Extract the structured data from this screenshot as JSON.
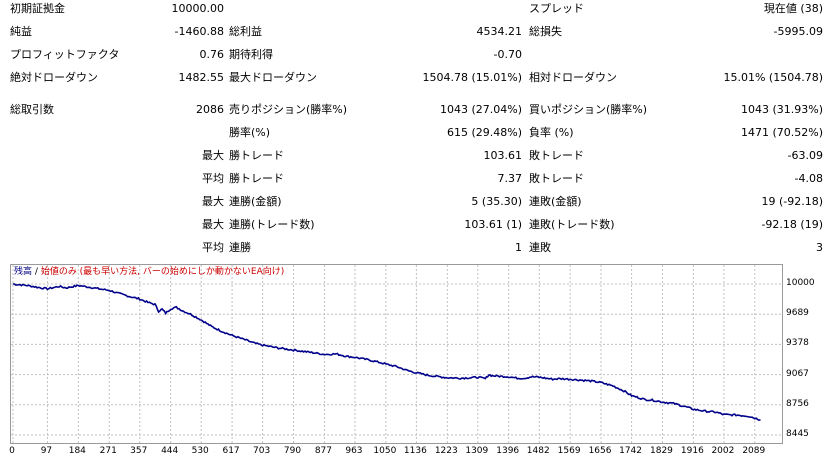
{
  "report": {
    "rows": [
      {
        "c1_label": "初期証拠金",
        "c1_value": "10000.00",
        "c2_label": "",
        "c2_value": "",
        "c3_label": "スプレッド",
        "c3_value": "現在値 (38)"
      },
      {
        "c1_label": "純益",
        "c1_value": "-1460.88",
        "c2_label": "総利益",
        "c2_value": "4534.21",
        "c3_label": "総損失",
        "c3_value": "-5995.09"
      },
      {
        "c1_label": "プロフィットファクタ",
        "c1_value": "0.76",
        "c2_label": "期待利得",
        "c2_value": "-0.70",
        "c3_label": "",
        "c3_value": ""
      },
      {
        "c1_label": "絶対ドローダウン",
        "c1_value": "1482.55",
        "c2_label": "最大ドローダウン",
        "c2_value": "1504.78 (15.01%)",
        "c3_label": "相対ドローダウン",
        "c3_value": "15.01% (1504.78)"
      },
      {
        "c1_label": "総取引数",
        "c1_value": "2086",
        "c2_label": "売りポジション(勝率%)",
        "c2_value": "1043 (27.04%)",
        "c3_label": "買いポジション(勝率%)",
        "c3_value": "1043 (31.93%)"
      },
      {
        "c1_label": "",
        "c1_value": "",
        "c2_label": "勝率(%)",
        "c2_value": "615 (29.48%)",
        "c3_label": "負率 (%)",
        "c3_value": "1471 (70.52%)"
      },
      {
        "prefix": "最大",
        "c2_label": "勝トレード",
        "c2_value": "103.61",
        "c3_label": "敗トレード",
        "c3_value": "-63.09"
      },
      {
        "prefix": "平均",
        "c2_label": "勝トレード",
        "c2_value": "7.37",
        "c3_label": "敗トレード",
        "c3_value": "-4.08"
      },
      {
        "prefix": "最大",
        "c2_label": "連勝(金額)",
        "c2_value": "5 (35.30)",
        "c3_label": "連敗(金額)",
        "c3_value": "19 (-92.18)"
      },
      {
        "prefix": "最大",
        "c2_label": "連勝(トレード数)",
        "c2_value": "103.61 (1)",
        "c3_label": "連敗(トレード数)",
        "c3_value": "-92.18 (19)"
      },
      {
        "prefix": "平均",
        "c2_label": "連勝",
        "c2_value": "1",
        "c3_label": "連敗",
        "c3_value": "3"
      }
    ]
  },
  "chart_data": {
    "type": "line",
    "legend_series": "残高",
    "legend_separator": "/",
    "legend_model": "始値のみ (最も早い方法, バーの始めにしか動かないEA向け)",
    "x_ticks": [
      0,
      97,
      184,
      271,
      357,
      444,
      530,
      617,
      703,
      790,
      877,
      963,
      1050,
      1136,
      1223,
      1309,
      1396,
      1482,
      1569,
      1656,
      1742,
      1829,
      1916,
      2002,
      2089
    ],
    "y_ticks": [
      10000,
      9689,
      9378,
      9067,
      8756,
      8445
    ],
    "xlim": [
      0,
      2160
    ],
    "ylim": [
      8445,
      10000
    ],
    "line_color": "#00008b",
    "x": [
      0,
      40,
      80,
      97,
      130,
      150,
      184,
      220,
      250,
      271,
      300,
      330,
      357,
      380,
      400,
      410,
      420,
      430,
      444,
      460,
      480,
      500,
      530,
      560,
      590,
      617,
      650,
      680,
      703,
      740,
      770,
      790,
      830,
      860,
      877,
      910,
      940,
      963,
      1000,
      1030,
      1050,
      1080,
      1110,
      1136,
      1170,
      1200,
      1223,
      1260,
      1290,
      1309,
      1330,
      1340,
      1350,
      1370,
      1396,
      1420,
      1440,
      1460,
      1482,
      1500,
      1520,
      1540,
      1569,
      1600,
      1630,
      1656,
      1690,
      1720,
      1742,
      1780,
      1800,
      1829,
      1860,
      1890,
      1916,
      1950,
      1980,
      2002,
      2040,
      2070,
      2089,
      2105
    ],
    "y": [
      10000,
      9985,
      9960,
      9950,
      9975,
      9960,
      9985,
      9965,
      9945,
      9935,
      9900,
      9870,
      9845,
      9810,
      9790,
      9720,
      9740,
      9700,
      9745,
      9760,
      9720,
      9690,
      9630,
      9560,
      9510,
      9470,
      9430,
      9390,
      9370,
      9345,
      9330,
      9320,
      9300,
      9285,
      9275,
      9280,
      9255,
      9245,
      9220,
      9195,
      9175,
      9150,
      9110,
      9085,
      9060,
      9045,
      9035,
      9030,
      9035,
      9040,
      9025,
      9065,
      9055,
      9050,
      9045,
      9030,
      9030,
      9045,
      9040,
      9030,
      9020,
      9025,
      9020,
      9010,
      9000,
      8985,
      8950,
      8900,
      8850,
      8810,
      8805,
      8785,
      8770,
      8740,
      8710,
      8690,
      8680,
      8655,
      8650,
      8640,
      8620,
      8600
    ]
  }
}
